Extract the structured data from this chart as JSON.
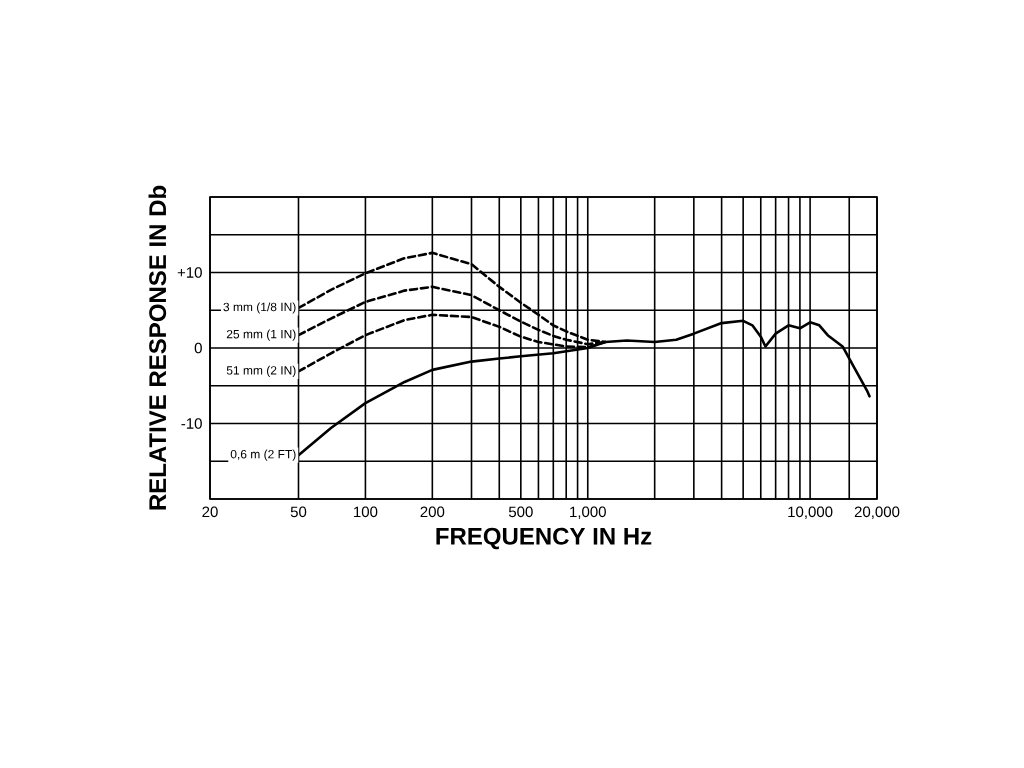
{
  "chart_data": {
    "type": "line",
    "xlabel": "FREQUENCY IN Hz",
    "ylabel": "RELATIVE RESPONSE IN Db",
    "log": "x",
    "grid": true,
    "legend": false,
    "xlim": [
      20,
      20000
    ],
    "ylim": [
      -20,
      20
    ],
    "xticks": [
      20,
      50,
      100,
      200,
      {
        "value": 300,
        "label": null
      },
      {
        "value": 400,
        "label": null
      },
      500,
      {
        "value": 600,
        "label": null
      },
      {
        "value": 700,
        "label": null
      },
      {
        "value": 800,
        "label": null
      },
      {
        "value": 900,
        "label": null
      },
      {
        "value": 1000,
        "label": "1,000"
      },
      {
        "value": 2000,
        "label": null
      },
      {
        "value": 3000,
        "label": null
      },
      {
        "value": 4000,
        "label": null
      },
      {
        "value": 5000,
        "label": null
      },
      {
        "value": 6000,
        "label": null
      },
      {
        "value": 7000,
        "label": null
      },
      {
        "value": 8000,
        "label": null
      },
      {
        "value": 9000,
        "label": null
      },
      {
        "value": 10000,
        "label": "10,000"
      },
      {
        "value": 15000,
        "label": null
      },
      {
        "value": 20000,
        "label": "20,000"
      }
    ],
    "yticks": [
      {
        "value": -20,
        "label": null
      },
      {
        "value": -15,
        "label": null
      },
      {
        "value": -10,
        "label": "-10"
      },
      {
        "value": -5,
        "label": null
      },
      0,
      {
        "value": 5,
        "label": null
      },
      {
        "value": 10,
        "label": "+10"
      },
      {
        "value": 15,
        "label": null
      },
      {
        "value": 20,
        "label": null
      }
    ],
    "series": [
      {
        "name": "3 mm (1/8 IN)",
        "color": "#000000",
        "line_style": "dashed",
        "x": [
          50,
          70,
          100,
          150,
          200,
          300,
          400,
          500,
          600,
          700,
          800,
          1000,
          1200
        ],
        "values": [
          5.3,
          7.7,
          9.9,
          11.9,
          12.6,
          11.1,
          8.1,
          6.0,
          4.4,
          3.0,
          2.2,
          1.1,
          0.8
        ]
      },
      {
        "name": "25 mm (1 IN)",
        "color": "#000000",
        "line_style": "dashed",
        "x": [
          50,
          70,
          100,
          150,
          200,
          300,
          400,
          500,
          600,
          700,
          800,
          1000,
          1200
        ],
        "values": [
          1.7,
          3.9,
          6.1,
          7.6,
          8.1,
          7.0,
          5.0,
          3.5,
          2.4,
          1.6,
          1.1,
          0.5,
          0.8
        ]
      },
      {
        "name": "51 mm (2 IN)",
        "color": "#000000",
        "line_style": "dashed",
        "x": [
          50,
          70,
          100,
          150,
          200,
          300,
          400,
          500,
          600,
          800,
          1000,
          1200
        ],
        "values": [
          -3.1,
          -0.7,
          1.7,
          3.7,
          4.4,
          4.1,
          2.8,
          1.5,
          0.8,
          0.2,
          0.1,
          0.8
        ]
      },
      {
        "name": "0,6 m (2 FT)",
        "color": "#000000",
        "line_style": "solid",
        "x": [
          50,
          70,
          100,
          150,
          200,
          300,
          400,
          500,
          700,
          1000,
          1200,
          1500,
          2000,
          2500,
          3000,
          4000,
          5000,
          5500,
          6000,
          6300,
          7000,
          8000,
          9000,
          10000,
          11000,
          12000,
          14000,
          16000,
          18000,
          18500
        ],
        "values": [
          -14.2,
          -10.6,
          -7.3,
          -4.5,
          -2.9,
          -1.8,
          -1.4,
          -1.1,
          -0.7,
          0.0,
          0.8,
          1.0,
          0.8,
          1.1,
          1.9,
          3.3,
          3.6,
          3.0,
          1.5,
          0.2,
          1.9,
          3.0,
          2.6,
          3.4,
          3.0,
          1.7,
          0.2,
          -2.9,
          -5.6,
          -6.4
        ]
      }
    ]
  }
}
